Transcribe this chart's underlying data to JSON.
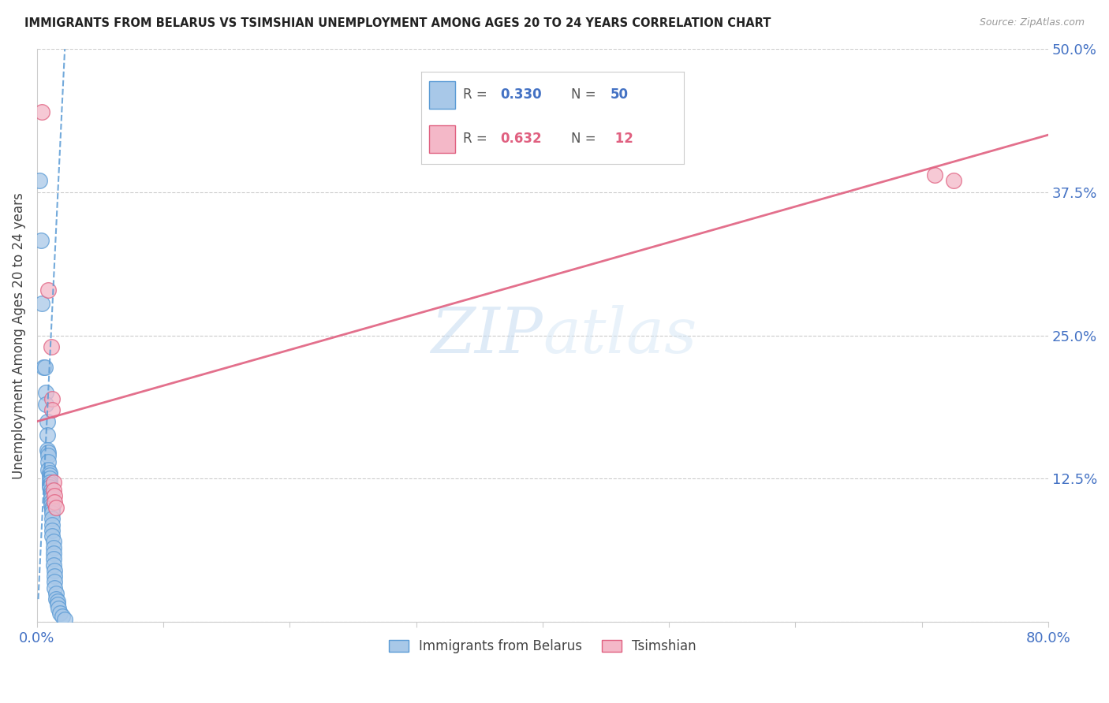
{
  "title": "IMMIGRANTS FROM BELARUS VS TSIMSHIAN UNEMPLOYMENT AMONG AGES 20 TO 24 YEARS CORRELATION CHART",
  "source": "Source: ZipAtlas.com",
  "ylabel": "Unemployment Among Ages 20 to 24 years",
  "xlim": [
    0.0,
    0.8
  ],
  "ylim": [
    0.0,
    0.5
  ],
  "yticks": [
    0.0,
    0.125,
    0.25,
    0.375,
    0.5
  ],
  "xticks": [
    0.0,
    0.1,
    0.2,
    0.3,
    0.4,
    0.5,
    0.6,
    0.7,
    0.8
  ],
  "blue_color": "#a8c8e8",
  "blue_edge": "#5b9bd5",
  "pink_color": "#f4b8c8",
  "pink_edge": "#e06080",
  "trend_blue_color": "#5b9bd5",
  "trend_pink_color": "#e06080",
  "watermark_zip": "ZIP",
  "watermark_atlas": "atlas",
  "blue_r": "0.330",
  "blue_n": "50",
  "pink_r": "0.632",
  "pink_n": "12",
  "blue_scatter": [
    [
      0.002,
      0.385
    ],
    [
      0.003,
      0.333
    ],
    [
      0.004,
      0.278
    ],
    [
      0.005,
      0.222
    ],
    [
      0.006,
      0.222
    ],
    [
      0.007,
      0.2
    ],
    [
      0.007,
      0.19
    ],
    [
      0.008,
      0.175
    ],
    [
      0.008,
      0.163
    ],
    [
      0.008,
      0.15
    ],
    [
      0.009,
      0.148
    ],
    [
      0.009,
      0.145
    ],
    [
      0.009,
      0.14
    ],
    [
      0.009,
      0.133
    ],
    [
      0.01,
      0.13
    ],
    [
      0.01,
      0.128
    ],
    [
      0.01,
      0.125
    ],
    [
      0.01,
      0.122
    ],
    [
      0.01,
      0.12
    ],
    [
      0.01,
      0.118
    ],
    [
      0.011,
      0.115
    ],
    [
      0.011,
      0.112
    ],
    [
      0.011,
      0.11
    ],
    [
      0.011,
      0.108
    ],
    [
      0.011,
      0.105
    ],
    [
      0.011,
      0.102
    ],
    [
      0.012,
      0.1
    ],
    [
      0.012,
      0.098
    ],
    [
      0.012,
      0.095
    ],
    [
      0.012,
      0.09
    ],
    [
      0.012,
      0.085
    ],
    [
      0.012,
      0.08
    ],
    [
      0.012,
      0.075
    ],
    [
      0.013,
      0.07
    ],
    [
      0.013,
      0.065
    ],
    [
      0.013,
      0.06
    ],
    [
      0.013,
      0.055
    ],
    [
      0.013,
      0.05
    ],
    [
      0.014,
      0.045
    ],
    [
      0.014,
      0.04
    ],
    [
      0.014,
      0.035
    ],
    [
      0.014,
      0.03
    ],
    [
      0.015,
      0.025
    ],
    [
      0.015,
      0.02
    ],
    [
      0.016,
      0.018
    ],
    [
      0.016,
      0.015
    ],
    [
      0.017,
      0.012
    ],
    [
      0.018,
      0.008
    ],
    [
      0.02,
      0.005
    ],
    [
      0.022,
      0.002
    ]
  ],
  "pink_scatter": [
    [
      0.004,
      0.445
    ],
    [
      0.009,
      0.29
    ],
    [
      0.011,
      0.24
    ],
    [
      0.012,
      0.195
    ],
    [
      0.012,
      0.185
    ],
    [
      0.013,
      0.122
    ],
    [
      0.013,
      0.115
    ],
    [
      0.014,
      0.11
    ],
    [
      0.014,
      0.105
    ],
    [
      0.015,
      0.1
    ],
    [
      0.71,
      0.39
    ],
    [
      0.725,
      0.385
    ]
  ],
  "blue_trend_x": [
    0.001,
    0.022
  ],
  "blue_trend_y": [
    0.02,
    0.5
  ],
  "pink_trend_x": [
    0.0,
    0.8
  ],
  "pink_trend_y": [
    0.175,
    0.425
  ]
}
